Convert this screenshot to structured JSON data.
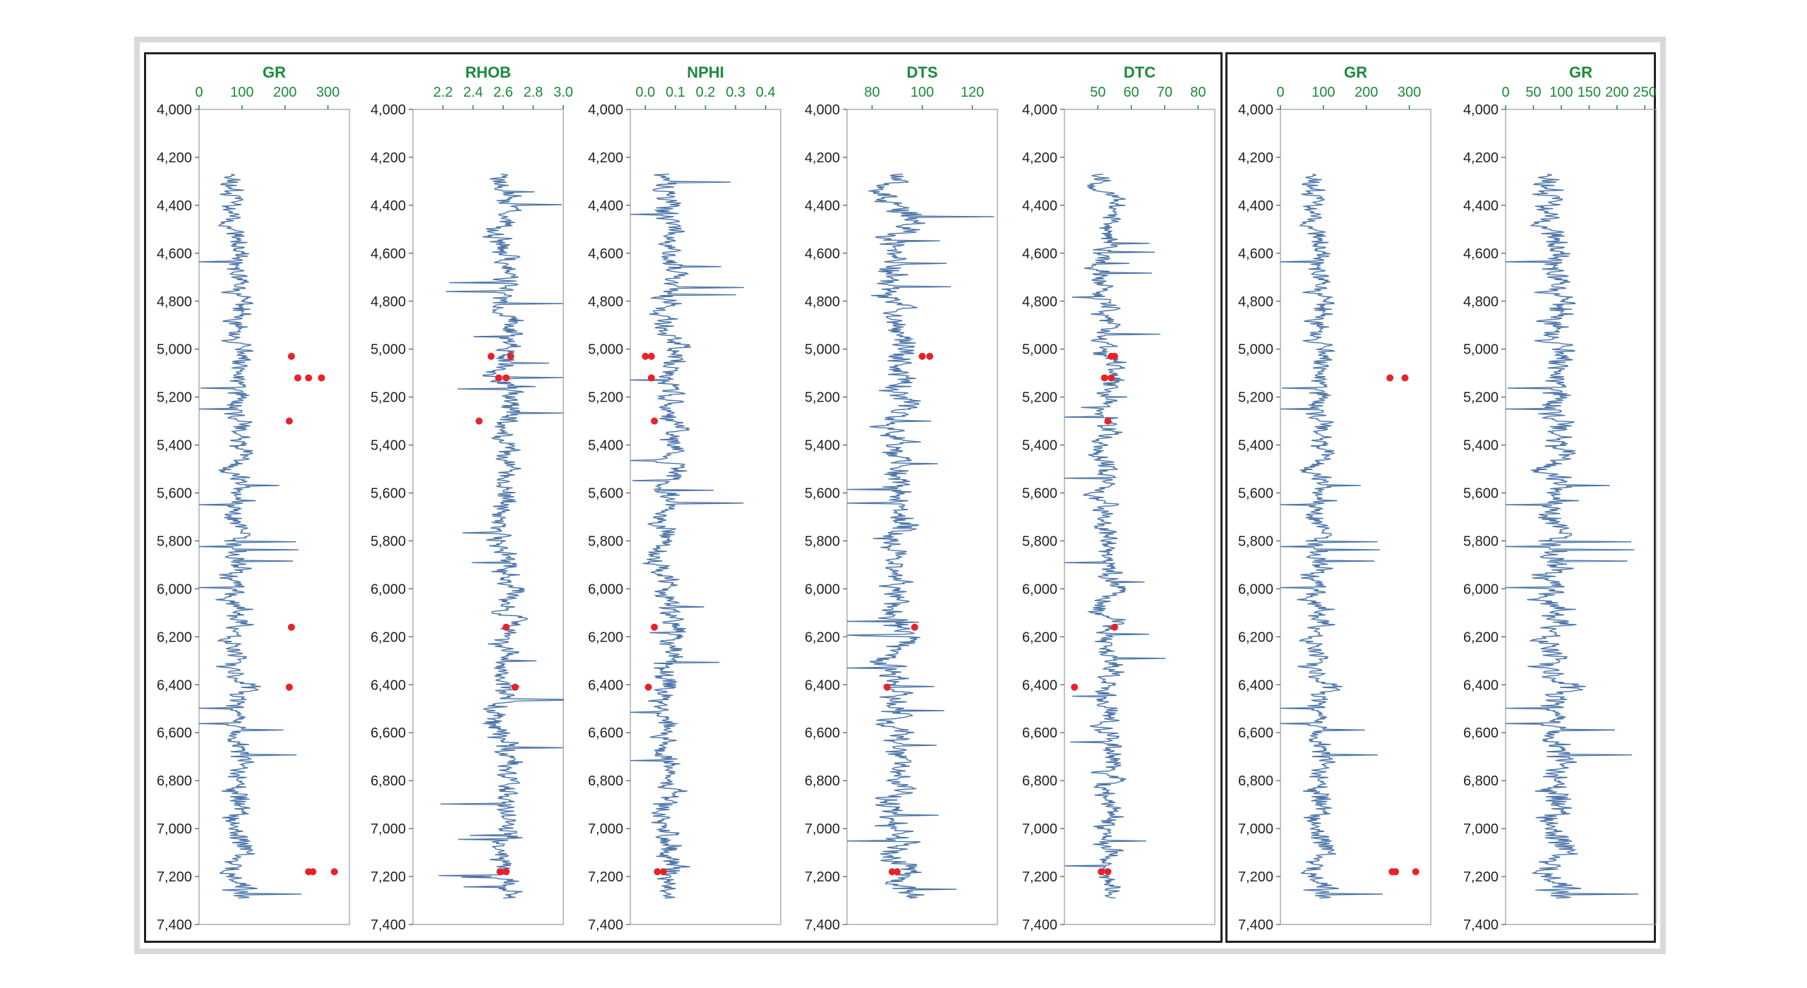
{
  "chart_data": [
    {
      "type": "line",
      "panel": "left",
      "title": "GR",
      "xlim": [
        0,
        350
      ],
      "xticks": [
        0,
        100,
        200,
        300
      ],
      "xtick_labels": [
        "0",
        "100",
        "200",
        "300"
      ],
      "base": 90,
      "noise": 40,
      "seed": 11,
      "series": [],
      "outliers": [
        [
          5030,
          215
        ],
        [
          5120,
          230
        ],
        [
          5120,
          255
        ],
        [
          5120,
          285
        ],
        [
          5300,
          210
        ],
        [
          6160,
          215
        ],
        [
          6410,
          210
        ],
        [
          7180,
          255
        ],
        [
          7180,
          265
        ],
        [
          7180,
          315
        ]
      ]
    },
    {
      "type": "line",
      "panel": "left",
      "title": "RHOB",
      "xlim": [
        2.0,
        3.0
      ],
      "xticks": [
        2.2,
        2.4,
        2.6,
        2.8,
        3.0
      ],
      "xtick_labels": [
        "2.2",
        "2.4",
        "2.6",
        "2.8",
        "3.0"
      ],
      "base": 2.62,
      "noise": 0.12,
      "seed": 23,
      "series": [],
      "outliers": [
        [
          5030,
          2.52
        ],
        [
          5030,
          2.65
        ],
        [
          5120,
          2.57
        ],
        [
          5120,
          2.62
        ],
        [
          5300,
          2.44
        ],
        [
          6160,
          2.62
        ],
        [
          6410,
          2.68
        ],
        [
          7180,
          2.58
        ],
        [
          7180,
          2.62
        ]
      ]
    },
    {
      "type": "line",
      "panel": "left",
      "title": "NPHI",
      "xlim": [
        -0.05,
        0.45
      ],
      "xticks": [
        0.0,
        0.1,
        0.2,
        0.3,
        0.4
      ],
      "xtick_labels": [
        "0.0",
        "0.1",
        "0.2",
        "0.3",
        "0.4"
      ],
      "base": 0.08,
      "noise": 0.06,
      "seed": 37,
      "series": [],
      "outliers": [
        [
          5030,
          0.0
        ],
        [
          5030,
          0.02
        ],
        [
          5120,
          0.02
        ],
        [
          5300,
          0.03
        ],
        [
          6160,
          0.03
        ],
        [
          6410,
          0.01
        ],
        [
          7180,
          0.04
        ],
        [
          7180,
          0.06
        ]
      ]
    },
    {
      "type": "line",
      "panel": "left",
      "title": "DTS",
      "xlim": [
        70,
        130
      ],
      "xticks": [
        80,
        100,
        120
      ],
      "xtick_labels": [
        "80",
        "100",
        "120"
      ],
      "base": 90,
      "noise": 9,
      "seed": 51,
      "series": [],
      "outliers": [
        [
          5030,
          100
        ],
        [
          5030,
          103
        ],
        [
          6160,
          97
        ],
        [
          6410,
          86
        ],
        [
          7180,
          88
        ],
        [
          7180,
          90
        ]
      ]
    },
    {
      "type": "line",
      "panel": "left",
      "title": "DTC",
      "xlim": [
        40,
        85
      ],
      "xticks": [
        50,
        60,
        70,
        80
      ],
      "xtick_labels": [
        "50",
        "60",
        "70",
        "80"
      ],
      "base": 53,
      "noise": 5,
      "seed": 67,
      "series": [],
      "outliers": [
        [
          5030,
          54
        ],
        [
          5030,
          55
        ],
        [
          5120,
          52
        ],
        [
          5120,
          54
        ],
        [
          5300,
          53
        ],
        [
          6160,
          55
        ],
        [
          6410,
          43
        ],
        [
          7180,
          51
        ],
        [
          7180,
          53
        ]
      ]
    },
    {
      "type": "line",
      "panel": "right",
      "title": "GR",
      "xlim": [
        0,
        350
      ],
      "xticks": [
        0,
        100,
        200,
        300
      ],
      "xtick_labels": [
        "0",
        "100",
        "200",
        "300"
      ],
      "base": 90,
      "noise": 40,
      "seed": 11,
      "series": [],
      "outliers": [
        [
          5120,
          255
        ],
        [
          5120,
          290
        ],
        [
          7180,
          260
        ],
        [
          7180,
          268
        ],
        [
          7180,
          315
        ]
      ]
    },
    {
      "type": "line",
      "panel": "right",
      "title": "GR",
      "xlim": [
        0,
        270
      ],
      "xticks": [
        0,
        50,
        100,
        150,
        200,
        250
      ],
      "xtick_labels": [
        "0",
        "50",
        "100",
        "150",
        "200",
        "250"
      ],
      "base": 90,
      "noise": 40,
      "seed": 11,
      "series": [],
      "outliers": []
    }
  ],
  "depth": {
    "ylim": [
      4000,
      7400
    ],
    "ticks": [
      4000,
      4200,
      4400,
      4600,
      4800,
      5000,
      5200,
      5400,
      5600,
      5800,
      6000,
      6200,
      6400,
      6600,
      6800,
      7000,
      7200,
      7400
    ],
    "tick_labels": [
      "4,000",
      "4,200",
      "4,400",
      "4,600",
      "4,800",
      "5,000",
      "5,200",
      "5,400",
      "5,600",
      "5,800",
      "6,000",
      "6,200",
      "6,400",
      "6,600",
      "6,800",
      "7,000",
      "7,200",
      "7,400"
    ],
    "log_start": 4270,
    "log_end": 7290
  },
  "colors": {
    "log_line": "#4a74a8",
    "outlier": "#e8222b",
    "title": "#1a8a3a",
    "axis": "#555555",
    "frame": "#222222"
  }
}
